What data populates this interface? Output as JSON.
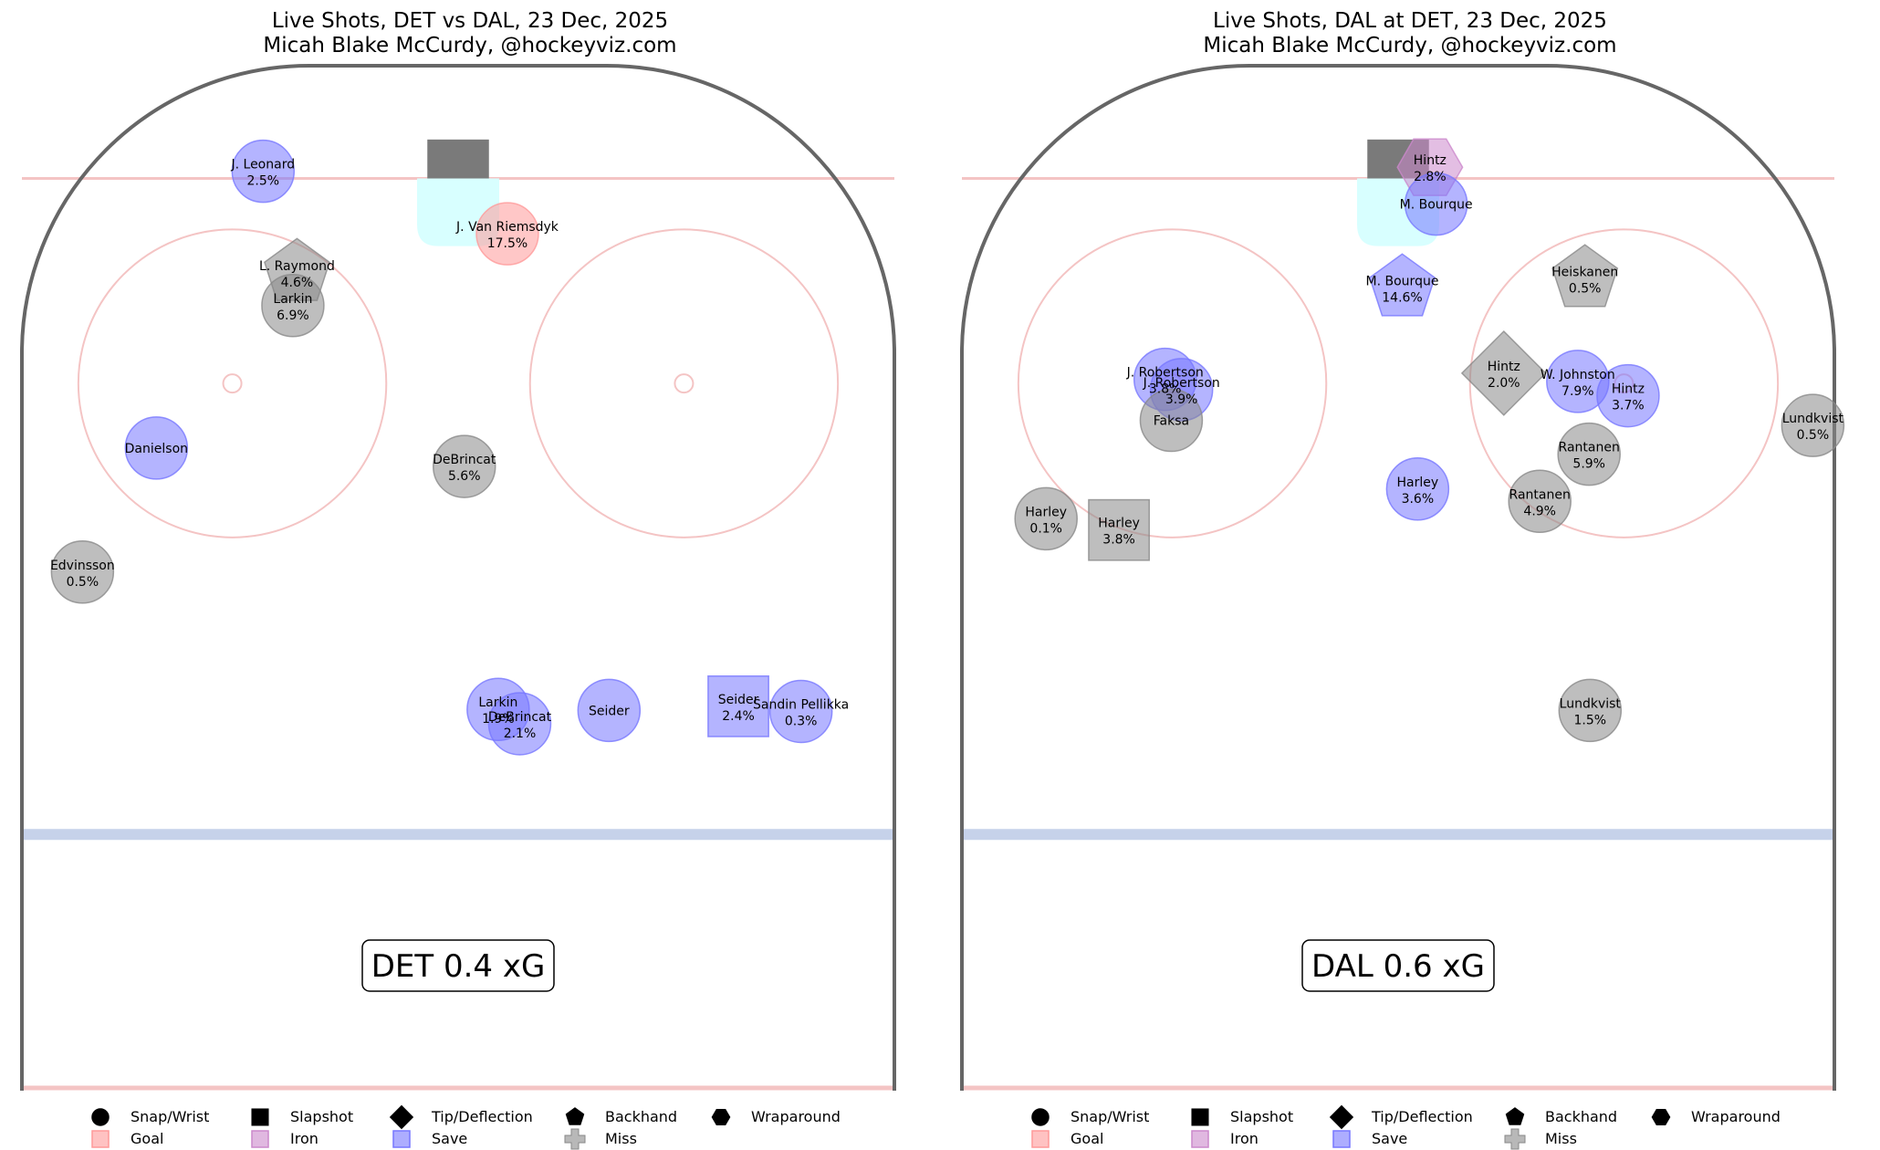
{
  "legend": {
    "shot_types": [
      "Snap/Wrist",
      "Slapshot",
      "Tip/Deflection",
      "Backhand",
      "Wraparound"
    ],
    "outcomes": [
      "Goal",
      "Iron",
      "Save",
      "Miss"
    ]
  },
  "colors": {
    "goal": "#ff9999",
    "iron": "#cc88cc",
    "save": "#7777ff",
    "miss": "#888888",
    "rink_border": "#666666",
    "red_line": "#f4c4c4",
    "blue_line": "#c6d2ea",
    "crease": "#d8ffff",
    "net": "#7a7a7a"
  },
  "panels": [
    {
      "title_line1": "Live Shots, DET vs DAL, 23 Dec, 2025",
      "title_line2": "Micah Blake McCurdy, @hockeyviz.com",
      "xg_label": "DET 0.4 xG"
    },
    {
      "title_line1": "Live Shots, DAL at DET, 23 Dec, 2025",
      "title_line2": "Micah Blake McCurdy, @hockeyviz.com",
      "xg_label": "DAL 0.6 xG"
    }
  ],
  "chart_data": [
    {
      "type": "scatter",
      "title": "Live Shots, DET vs DAL, 23 Dec, 2025",
      "subtitle": "Micah Blake McCurdy, @hockeyviz.com",
      "xlim": [
        -42.5,
        42.5
      ],
      "ylim": [
        0,
        100
      ],
      "units": "feet (half-rink, goal line at y=89)",
      "total_xg": "DET 0.4 xG",
      "shots": [
        {
          "player": "J. Leonard",
          "xg": "2.5%",
          "type": "Snap/Wrist",
          "outcome": "Save",
          "x": -19.0,
          "y": 89.7
        },
        {
          "player": "J. Van Riemsdyk",
          "xg": "17.5%",
          "type": "Snap/Wrist",
          "outcome": "Goal",
          "x": 4.8,
          "y": 83.6
        },
        {
          "player": "L. Raymond",
          "xg": "4.6%",
          "type": "Backhand",
          "outcome": "Miss",
          "x": -15.7,
          "y": 79.8
        },
        {
          "player": "Larkin",
          "xg": "6.9%",
          "type": "Snap/Wrist",
          "outcome": "Miss",
          "x": -16.1,
          "y": 76.6
        },
        {
          "player": "Danielson",
          "xg": "",
          "type": "Snap/Wrist",
          "outcome": "Save",
          "x": -29.4,
          "y": 62.7
        },
        {
          "player": "DeBrincat",
          "xg": "5.6%",
          "type": "Snap/Wrist",
          "outcome": "Miss",
          "x": 0.6,
          "y": 60.9
        },
        {
          "player": "Edvinsson",
          "xg": "0.5%",
          "type": "Snap/Wrist",
          "outcome": "Miss",
          "x": -36.6,
          "y": 50.6
        },
        {
          "player": "Larkin",
          "xg": "1.9%",
          "type": "Snap/Wrist",
          "outcome": "Save",
          "x": 3.9,
          "y": 37.2
        },
        {
          "player": "DeBrincat",
          "xg": "2.1%",
          "type": "Snap/Wrist",
          "outcome": "Save",
          "x": 6.0,
          "y": 35.8
        },
        {
          "player": "Seider",
          "xg": "",
          "type": "Snap/Wrist",
          "outcome": "Save",
          "x": 14.7,
          "y": 37.1
        },
        {
          "player": "Seider",
          "xg": "2.4%",
          "type": "Slapshot",
          "outcome": "Save",
          "x": 27.3,
          "y": 37.5
        },
        {
          "player": "Sandin Pellikka",
          "xg": "0.3%",
          "type": "Snap/Wrist",
          "outcome": "Save",
          "x": 33.4,
          "y": 37.0
        }
      ]
    },
    {
      "type": "scatter",
      "title": "Live Shots, DAL at DET, 23 Dec, 2025",
      "subtitle": "Micah Blake McCurdy, @hockeyviz.com",
      "xlim": [
        -42.5,
        42.5
      ],
      "ylim": [
        0,
        100
      ],
      "units": "feet (half-rink, goal line at y=89)",
      "total_xg": "DAL 0.6 xG",
      "shots": [
        {
          "player": "Hintz",
          "xg": "2.8%",
          "type": "Wraparound",
          "outcome": "Iron",
          "x": 3.1,
          "y": 90.1
        },
        {
          "player": "M. Bourque",
          "xg": "",
          "type": "Snap/Wrist",
          "outcome": "Save",
          "x": 3.7,
          "y": 86.5
        },
        {
          "player": "M. Bourque",
          "xg": "14.6%",
          "type": "Backhand",
          "outcome": "Save",
          "x": 0.4,
          "y": 78.3
        },
        {
          "player": "Heiskanen",
          "xg": "0.5%",
          "type": "Backhand",
          "outcome": "Miss",
          "x": 18.2,
          "y": 79.2
        },
        {
          "player": "Hintz",
          "xg": "2.0%",
          "type": "Tip/Deflection",
          "outcome": "Miss",
          "x": 10.3,
          "y": 70.0
        },
        {
          "player": "W. Johnston",
          "xg": "7.9%",
          "type": "Snap/Wrist",
          "outcome": "Save",
          "x": 17.5,
          "y": 69.2
        },
        {
          "player": "Hintz",
          "xg": "3.7%",
          "type": "Snap/Wrist",
          "outcome": "Save",
          "x": 22.4,
          "y": 67.8
        },
        {
          "player": "Lundkvist",
          "xg": "0.5%",
          "type": "Snap/Wrist",
          "outcome": "Miss",
          "x": 40.4,
          "y": 64.9
        },
        {
          "player": "J. Robertson",
          "xg": "3.8%",
          "type": "Snap/Wrist",
          "outcome": "Save",
          "x": -22.7,
          "y": 69.4
        },
        {
          "player": "J. Robertson",
          "xg": "3.9%",
          "type": "Snap/Wrist",
          "outcome": "Save",
          "x": -21.1,
          "y": 68.4
        },
        {
          "player": "Faksa",
          "xg": "",
          "type": "Snap/Wrist",
          "outcome": "Miss",
          "x": -22.1,
          "y": 65.4
        },
        {
          "player": "Rantanen",
          "xg": "5.9%",
          "type": "Snap/Wrist",
          "outcome": "Miss",
          "x": 18.6,
          "y": 62.1
        },
        {
          "player": "Harley",
          "xg": "3.6%",
          "type": "Snap/Wrist",
          "outcome": "Save",
          "x": 1.9,
          "y": 58.7
        },
        {
          "player": "Rantanen",
          "xg": "4.9%",
          "type": "Snap/Wrist",
          "outcome": "Miss",
          "x": 13.8,
          "y": 57.5
        },
        {
          "player": "Harley",
          "xg": "0.1%",
          "type": "Snap/Wrist",
          "outcome": "Miss",
          "x": -34.3,
          "y": 55.8
        },
        {
          "player": "Harley",
          "xg": "3.8%",
          "type": "Slapshot",
          "outcome": "Miss",
          "x": -27.2,
          "y": 54.7
        },
        {
          "player": "Lundkvist",
          "xg": "1.5%",
          "type": "Snap/Wrist",
          "outcome": "Miss",
          "x": 18.7,
          "y": 37.1
        }
      ]
    }
  ]
}
